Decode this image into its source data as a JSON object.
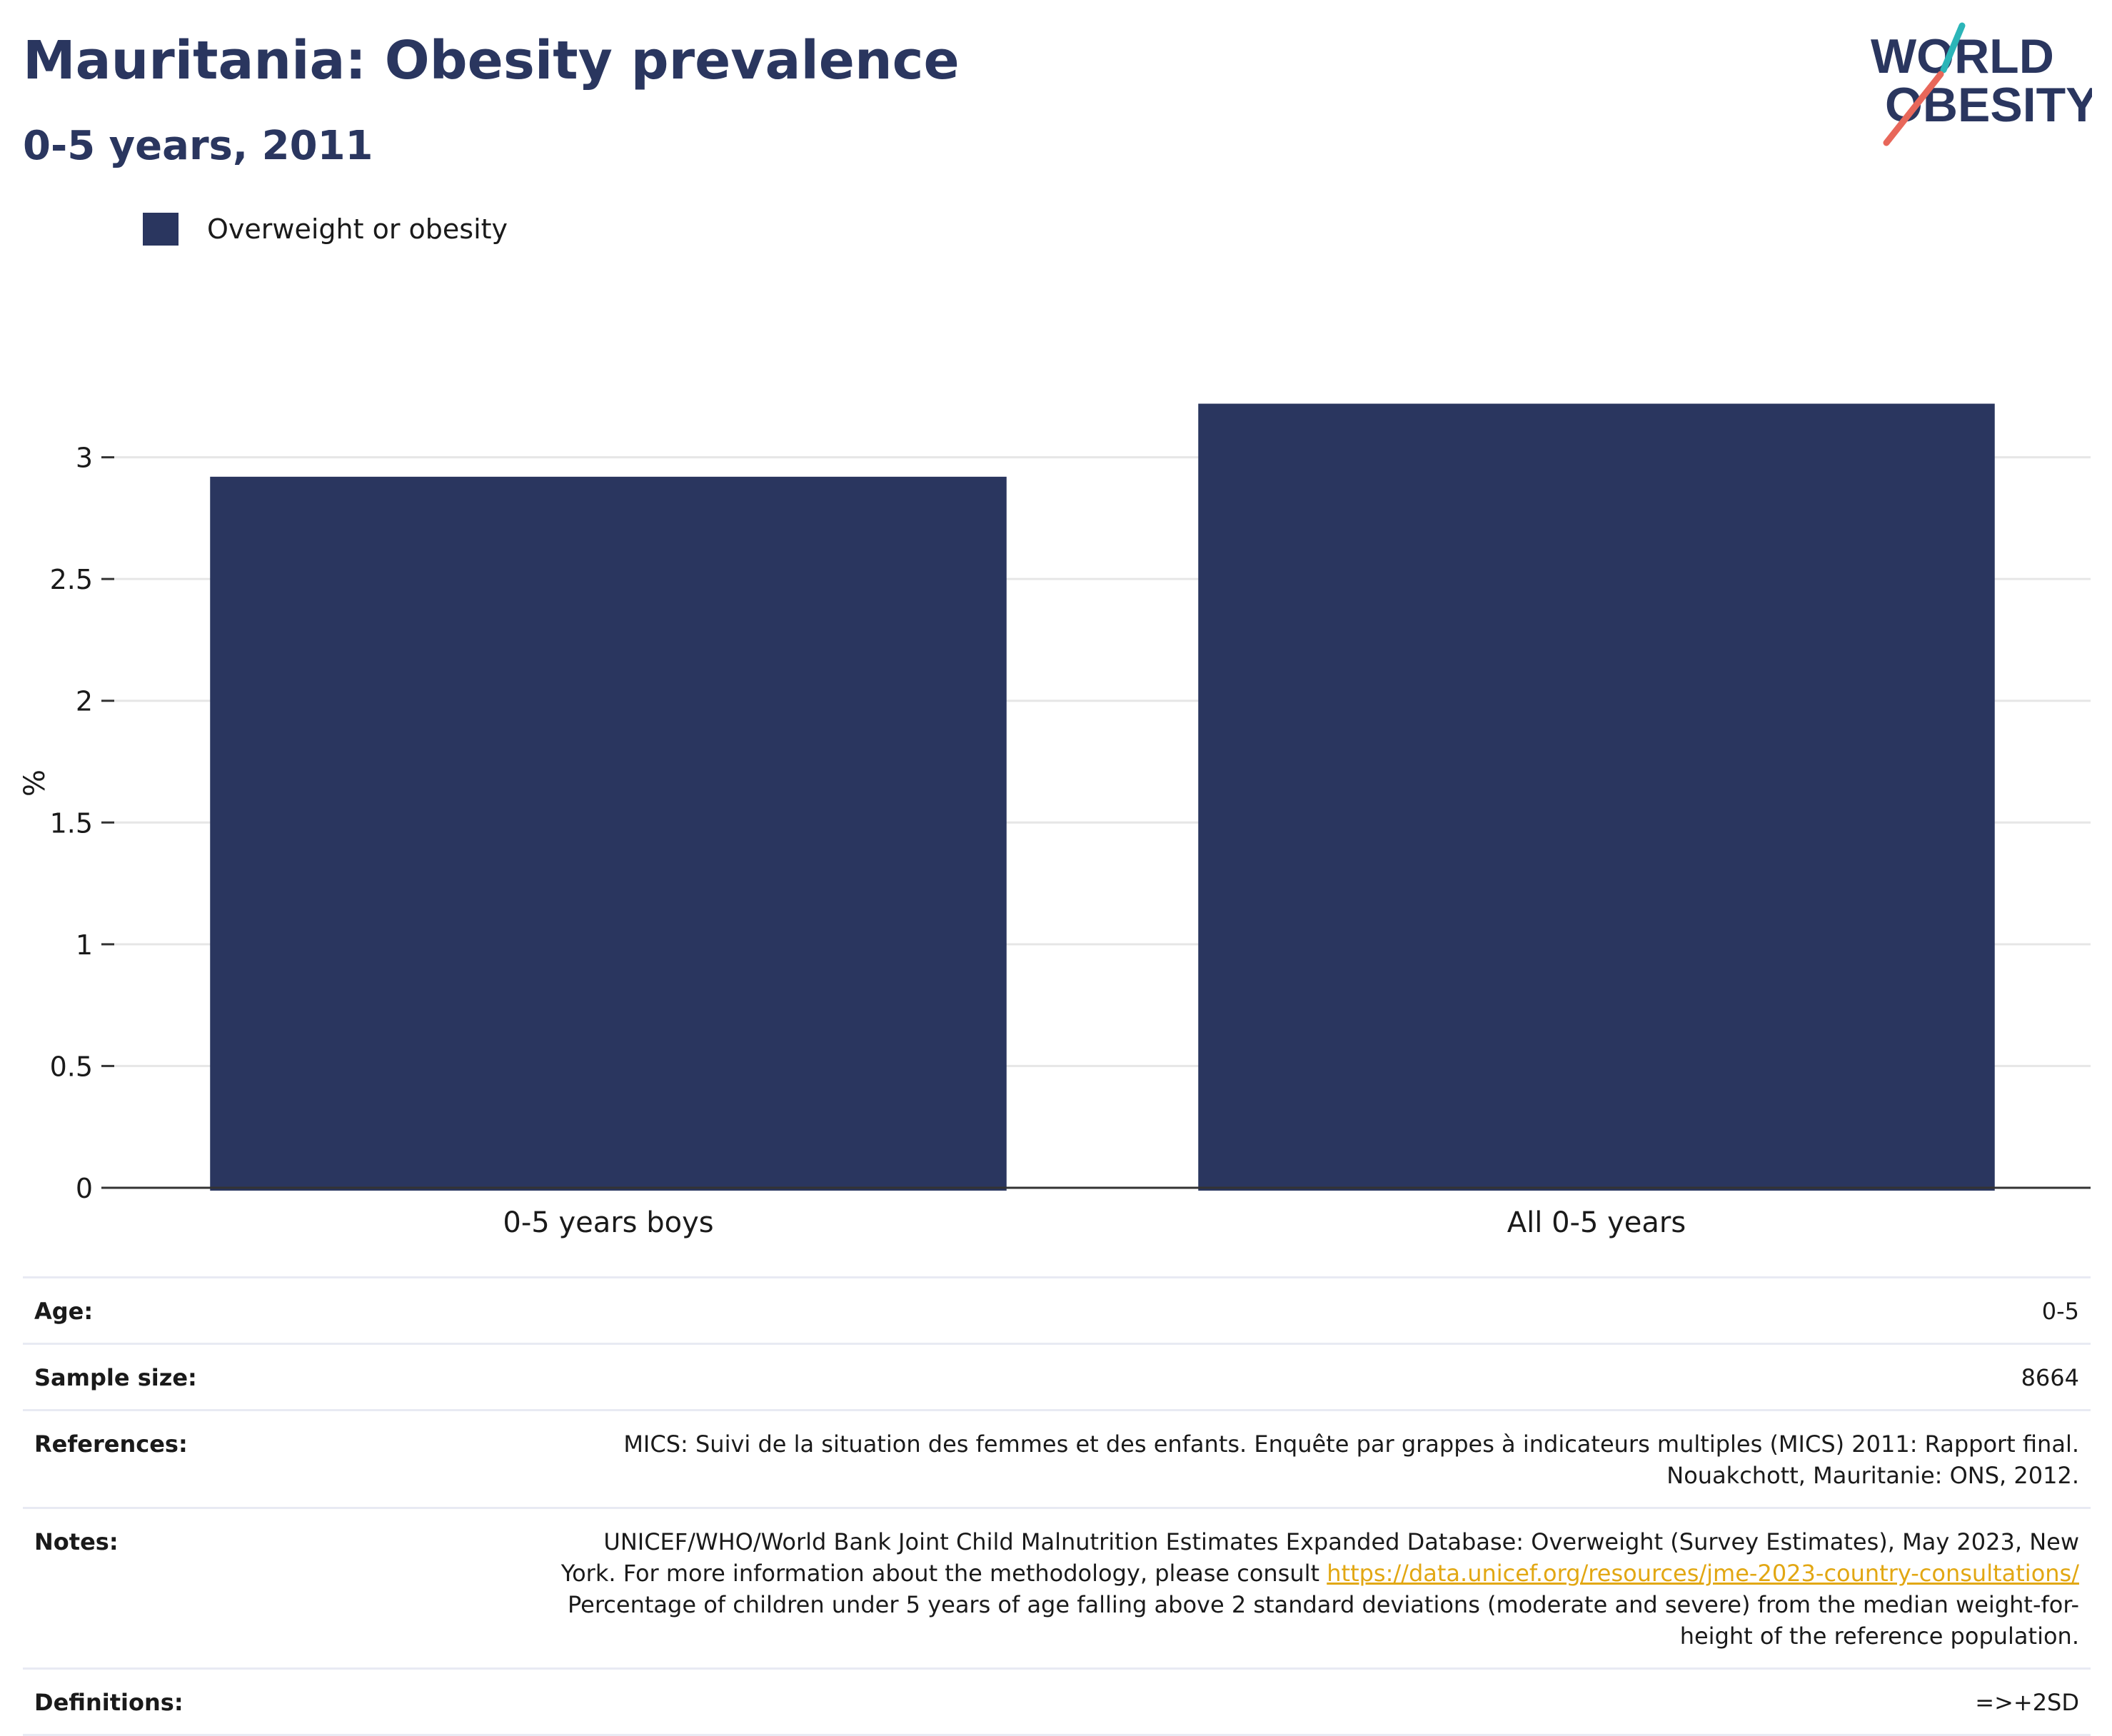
{
  "header": {
    "title": "Mauritania: Obesity prevalence",
    "subtitle": "0-5 years, 2011"
  },
  "logo": {
    "line1": "WORLD",
    "line2": "OBESITY",
    "accent_teal": "#2bb5b8",
    "accent_coral": "#e8675a"
  },
  "colors": {
    "bar": "#2a365f",
    "grid": "#e6e6e6",
    "axis": "#333333"
  },
  "chart_data": {
    "type": "bar",
    "categories": [
      "0-5 years boys",
      "All 0-5 years"
    ],
    "series": [
      {
        "name": "Overweight or obesity",
        "values": [
          2.92,
          3.22
        ],
        "color": "#2a365f"
      }
    ],
    "title": "Mauritania: Obesity prevalence",
    "subtitle": "0-5 years, 2011",
    "xlabel": "",
    "ylabel": "%",
    "ylim": [
      0,
      3.5
    ],
    "yticks": [
      0,
      0.5,
      1,
      1.5,
      2,
      2.5,
      3
    ],
    "ytick_labels": [
      "0",
      "0.5",
      "1",
      "1.5",
      "2",
      "2.5",
      "3"
    ],
    "grid": true,
    "legend": "top-left"
  },
  "meta": {
    "age_label": "Age:",
    "age_value": "0-5",
    "sample_label": "Sample size:",
    "sample_value": "8664",
    "references_label": "References:",
    "references_line1": "MICS: Suivi de la situation des femmes et des enfants. Enquête par grappes à indicateurs multiples (MICS) 2011: Rapport final.",
    "references_line2": "Nouakchott, Mauritanie: ONS, 2012.",
    "notes_label": "Notes:",
    "notes_line1": "UNICEF/WHO/World Bank Joint Child Malnutrition Estimates Expanded Database: Overweight (Survey Estimates), May 2023, New",
    "notes_line2_prefix": "York. For more information about the methodology, please consult ",
    "notes_link": "https://data.unicef.org/resources/jme-2023-country-consultations/",
    "notes_line3": "Percentage of children under 5 years of age falling above 2 standard deviations (moderate and severe) from the median weight-for-",
    "notes_line4": "height of the reference population.",
    "definitions_label": "Definitions:",
    "definitions_value": "=>+2SD"
  }
}
